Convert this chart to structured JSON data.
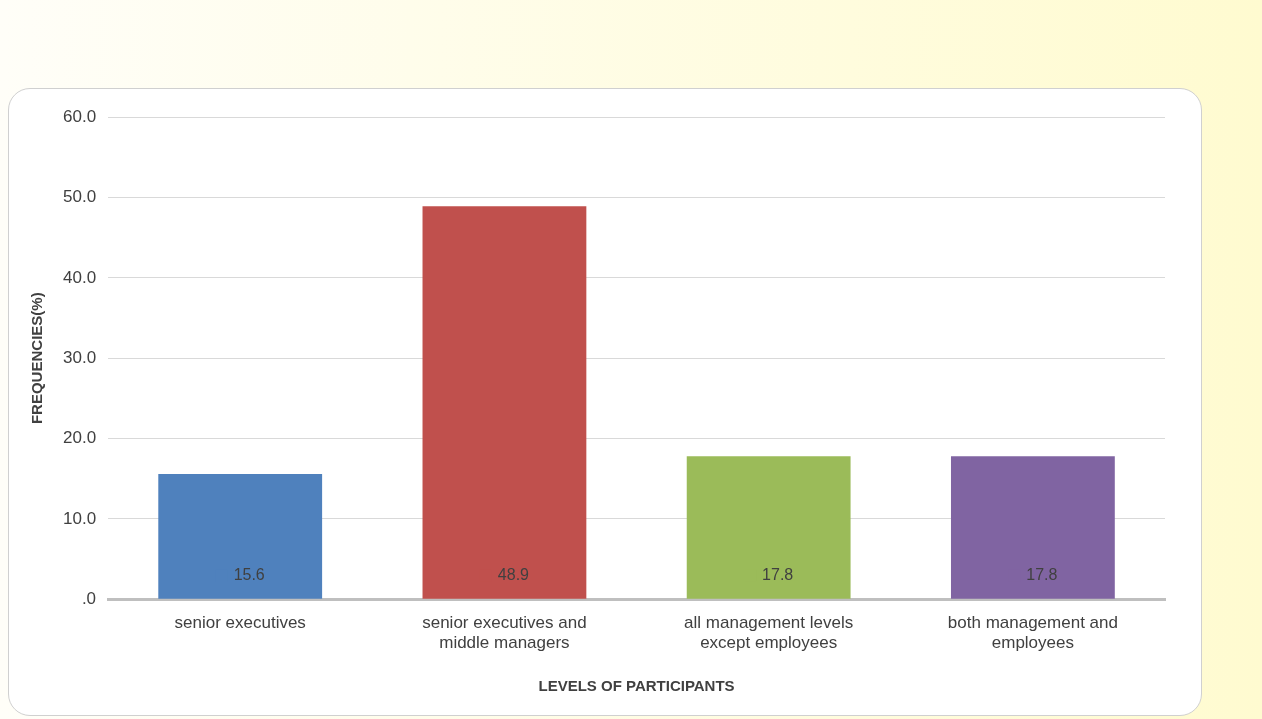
{
  "chart_data": {
    "type": "bar",
    "xlabel": "LEVELS OF PARTICIPANTS",
    "ylabel": "FREQUENCIES(%)",
    "categories": [
      "senior executives",
      "senior executives and middle managers",
      "all management levels except employees",
      "both management and employees"
    ],
    "values": [
      15.6,
      48.9,
      17.8,
      17.8
    ],
    "colors": [
      "#4f81bd",
      "#c0504d",
      "#9bbb59",
      "#8064a2"
    ],
    "ylim": [
      0,
      60
    ],
    "yticks": [
      {
        "value": 0,
        "label": ".0"
      },
      {
        "value": 10,
        "label": "10.0"
      },
      {
        "value": 20,
        "label": "20.0"
      },
      {
        "value": 30,
        "label": "30.0"
      },
      {
        "value": 40,
        "label": "40.0"
      },
      {
        "value": 50,
        "label": "50.0"
      },
      {
        "value": 60,
        "label": "60.0"
      }
    ],
    "grid": "y",
    "legend": false,
    "data_labels": true
  }
}
